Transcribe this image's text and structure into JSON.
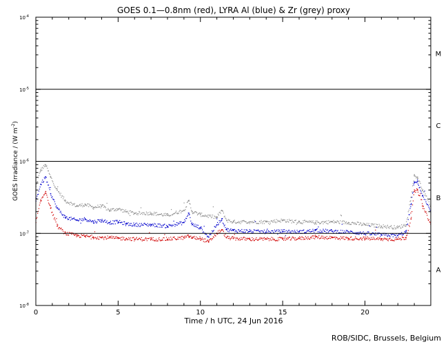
{
  "chart_data": {
    "type": "scatter",
    "title": "GOES 0.1—0.8nm (red), LYRA Al (blue) & Zr (grey) proxy",
    "xlabel": "Time / h UTC, 24 Jun 2016",
    "ylabel": "GOES Irradiance / (W m",
    "ylabel_sup": "-2",
    "ylabel_close": ")",
    "credit": "ROB/SIDC, Brussels, Belgium",
    "xlim": [
      0,
      24
    ],
    "ylim_log10": [
      -8,
      -4
    ],
    "x_ticks": [
      0,
      5,
      10,
      15,
      20
    ],
    "x_tick_labels": [
      "0",
      "5",
      "10",
      "15",
      "20"
    ],
    "y_tick_base": "10",
    "y_ticks": [
      {
        "value": -8,
        "exponent": "-8"
      },
      {
        "value": -7,
        "exponent": "-7"
      },
      {
        "value": -6,
        "exponent": "-6"
      },
      {
        "value": -5,
        "exponent": "-5"
      },
      {
        "value": -4,
        "exponent": "-4"
      }
    ],
    "flare_thresholds": [
      -7,
      -6,
      -5
    ],
    "flare_classes": [
      {
        "label": "A",
        "center_log10": -7.5
      },
      {
        "label": "B",
        "center_log10": -6.5
      },
      {
        "label": "C",
        "center_log10": -5.5
      },
      {
        "label": "M",
        "center_log10": -4.5
      }
    ],
    "series": [
      {
        "name": "LYRA Zr proxy (grey)",
        "color": "#8c8c8c",
        "x": [
          0,
          0.3,
          0.6,
          0.9,
          1.3,
          1.8,
          2.5,
          3.0,
          3.5,
          4.0,
          4.5,
          5.0,
          5.5,
          6.0,
          7.0,
          8.0,
          9.0,
          9.3,
          9.5,
          10.0,
          11.0,
          11.3,
          11.6,
          12.0,
          13.0,
          14.0,
          15.0,
          16.0,
          17.0,
          18.0,
          19.0,
          20.0,
          21.0,
          22.0,
          22.5,
          22.8,
          23.0,
          23.2,
          23.5,
          24.0
        ],
        "log10_y": [
          -6.35,
          -6.12,
          -6.05,
          -6.22,
          -6.4,
          -6.55,
          -6.62,
          -6.6,
          -6.64,
          -6.62,
          -6.68,
          -6.66,
          -6.7,
          -6.72,
          -6.72,
          -6.75,
          -6.68,
          -6.55,
          -6.7,
          -6.74,
          -6.78,
          -6.68,
          -6.82,
          -6.84,
          -6.84,
          -6.84,
          -6.82,
          -6.84,
          -6.85,
          -6.84,
          -6.85,
          -6.88,
          -6.9,
          -6.92,
          -6.88,
          -6.5,
          -6.2,
          -6.22,
          -6.4,
          -6.62
        ]
      },
      {
        "name": "LYRA Al proxy (blue)",
        "color": "#0000cc",
        "x": [
          0,
          0.3,
          0.6,
          0.9,
          1.3,
          1.8,
          2.5,
          3.0,
          3.5,
          4.0,
          4.5,
          5.0,
          5.5,
          6.0,
          7.0,
          8.0,
          9.0,
          9.3,
          9.5,
          10.0,
          10.5,
          11.0,
          11.3,
          11.6,
          12.0,
          13.0,
          14.0,
          15.0,
          16.0,
          17.0,
          18.0,
          19.0,
          20.0,
          21.0,
          22.0,
          22.5,
          22.8,
          23.0,
          23.2,
          23.5,
          24.0
        ],
        "log10_y": [
          -6.55,
          -6.32,
          -6.22,
          -6.45,
          -6.65,
          -6.78,
          -6.82,
          -6.8,
          -6.84,
          -6.82,
          -6.85,
          -6.84,
          -6.87,
          -6.88,
          -6.88,
          -6.9,
          -6.85,
          -6.72,
          -6.88,
          -6.92,
          -7.05,
          -6.88,
          -6.8,
          -6.95,
          -6.96,
          -6.97,
          -6.98,
          -6.97,
          -6.98,
          -6.96,
          -6.97,
          -6.98,
          -7.0,
          -7.02,
          -7.03,
          -6.98,
          -6.6,
          -6.3,
          -6.28,
          -6.48,
          -6.7
        ]
      },
      {
        "name": "GOES 0.1—0.8nm (red)",
        "color": "#d00000",
        "x": [
          0,
          0.3,
          0.6,
          0.9,
          1.3,
          1.8,
          2.5,
          3.0,
          3.5,
          4.0,
          4.5,
          5.0,
          5.5,
          6.0,
          7.0,
          8.0,
          9.0,
          9.3,
          9.5,
          10.0,
          10.5,
          11.0,
          11.3,
          11.6,
          12.0,
          13.0,
          14.0,
          15.0,
          16.0,
          17.0,
          18.0,
          19.0,
          20.0,
          21.0,
          22.0,
          22.5,
          22.8,
          23.0,
          23.2,
          23.5,
          24.0
        ],
        "log10_y": [
          -6.85,
          -6.55,
          -6.42,
          -6.65,
          -6.9,
          -7.0,
          -7.03,
          -7.04,
          -7.05,
          -7.06,
          -7.06,
          -7.07,
          -7.07,
          -7.08,
          -7.08,
          -7.08,
          -7.06,
          -7.04,
          -7.06,
          -7.07,
          -7.12,
          -7.0,
          -6.95,
          -7.06,
          -7.07,
          -7.08,
          -7.08,
          -7.08,
          -7.07,
          -7.05,
          -7.06,
          -7.07,
          -7.07,
          -7.08,
          -7.08,
          -7.06,
          -6.8,
          -6.42,
          -6.4,
          -6.62,
          -6.87
        ]
      }
    ]
  }
}
